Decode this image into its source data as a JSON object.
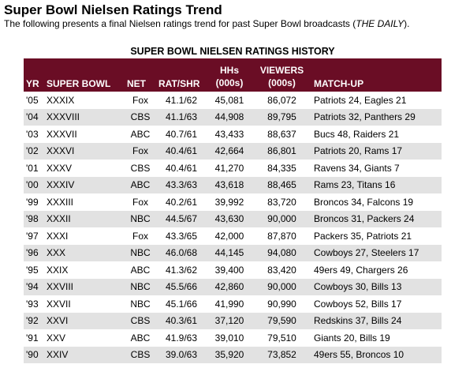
{
  "page": {
    "heading": "Super Bowl Nielsen Ratings Trend",
    "subheading_before": "The following presents a final Nielsen ratings trend for past Super Bowl broadcasts (",
    "subheading_source": "THE DAILY",
    "subheading_after": ")."
  },
  "table": {
    "title": "SUPER BOWL NIELSEN RATINGS HISTORY",
    "headers": {
      "yr": "YR",
      "super_bowl": "SUPER BOWL",
      "net": "NET",
      "rat_shr": "RAT/SHR",
      "hhs_line1": "HHs",
      "hhs_line2": "(000s)",
      "viewers_line1": "VIEWERS",
      "viewers_line2": "(000s)",
      "matchup": "MATCH-UP"
    },
    "rows": [
      {
        "yr": "'05",
        "sb": "XXXIX",
        "net": "Fox",
        "rat": "41.1/62",
        "hh": "45,081",
        "viewers": "86,072",
        "matchup": "Patriots 24, Eagles 21"
      },
      {
        "yr": "'04",
        "sb": "XXXVIII",
        "net": "CBS",
        "rat": "41.1/63",
        "hh": "44,908",
        "viewers": "89,795",
        "matchup": "Patriots 32, Panthers 29"
      },
      {
        "yr": "'03",
        "sb": "XXXVII",
        "net": "ABC",
        "rat": "40.7/61",
        "hh": "43,433",
        "viewers": "88,637",
        "matchup": "Bucs 48, Raiders 21"
      },
      {
        "yr": "'02",
        "sb": "XXXVI",
        "net": "Fox",
        "rat": "40.4/61",
        "hh": "42,664",
        "viewers": "86,801",
        "matchup": "Patriots 20, Rams 17"
      },
      {
        "yr": "'01",
        "sb": "XXXV",
        "net": "CBS",
        "rat": "40.4/61",
        "hh": "41,270",
        "viewers": "84,335",
        "matchup": "Ravens 34, Giants 7"
      },
      {
        "yr": "'00",
        "sb": "XXXIV",
        "net": "ABC",
        "rat": "43.3/63",
        "hh": "43,618",
        "viewers": "88,465",
        "matchup": "Rams 23, Titans 16"
      },
      {
        "yr": "'99",
        "sb": "XXXIII",
        "net": "Fox",
        "rat": "40.2/61",
        "hh": "39,992",
        "viewers": "83,720",
        "matchup": "Broncos 34, Falcons 19"
      },
      {
        "yr": "'98",
        "sb": "XXXII",
        "net": "NBC",
        "rat": "44.5/67",
        "hh": "43,630",
        "viewers": "90,000",
        "matchup": "Broncos 31, Packers 24"
      },
      {
        "yr": "'97",
        "sb": "XXXI",
        "net": "Fox",
        "rat": "43.3/65",
        "hh": "42,000",
        "viewers": "87,870",
        "matchup": "Packers 35, Patriots 21"
      },
      {
        "yr": "'96",
        "sb": "XXX",
        "net": "NBC",
        "rat": "46.0/68",
        "hh": "44,145",
        "viewers": "94,080",
        "matchup": "Cowboys 27, Steelers 17"
      },
      {
        "yr": "'95",
        "sb": "XXIX",
        "net": "ABC",
        "rat": "41.3/62",
        "hh": "39,400",
        "viewers": "83,420",
        "matchup": "49ers 49, Chargers 26"
      },
      {
        "yr": "'94",
        "sb": "XXVIII",
        "net": "NBC",
        "rat": "45.5/66",
        "hh": "42,860",
        "viewers": "90,000",
        "matchup": "Cowboys 30, Bills 13"
      },
      {
        "yr": "'93",
        "sb": "XXVII",
        "net": "NBC",
        "rat": "45.1/66",
        "hh": "41,990",
        "viewers": "90,990",
        "matchup": "Cowboys 52, Bills 17"
      },
      {
        "yr": "'92",
        "sb": "XXVI",
        "net": "CBS",
        "rat": "40.3/61",
        "hh": "37,120",
        "viewers": "79,590",
        "matchup": "Redskins 37, Bills 24"
      },
      {
        "yr": "'91",
        "sb": "XXV",
        "net": "ABC",
        "rat": "41.9/63",
        "hh": "39,010",
        "viewers": "79,510",
        "matchup": "Giants 20, Bills 19"
      },
      {
        "yr": "'90",
        "sb": "XXIV",
        "net": "CBS",
        "rat": "39.0/63",
        "hh": "35,920",
        "viewers": "73,852",
        "matchup": "49ers 55, Broncos 10"
      }
    ]
  },
  "colors": {
    "header_bg": "#6a0d25",
    "header_text": "#ffffff",
    "alt_row_bg": "#e2e2e2"
  }
}
